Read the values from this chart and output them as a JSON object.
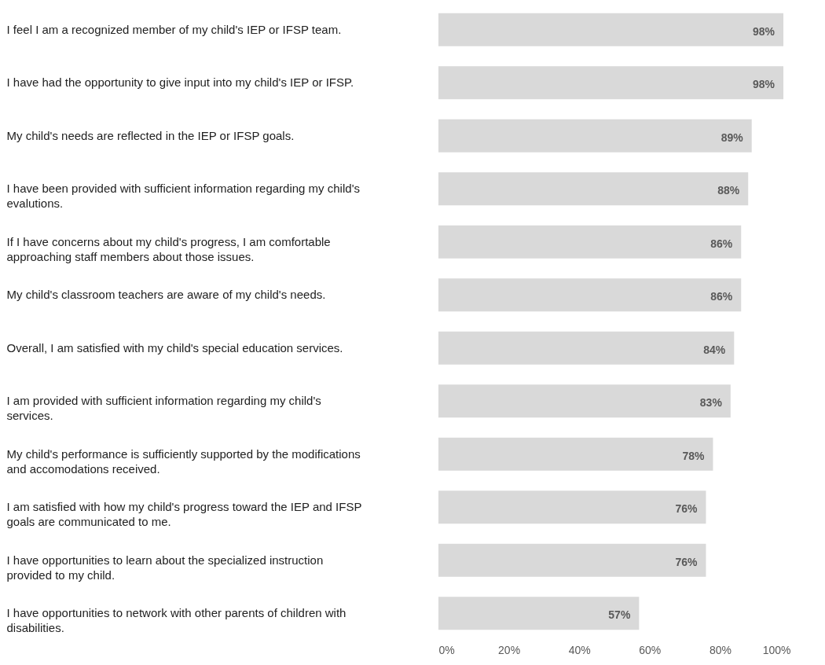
{
  "chart_data": {
    "type": "bar",
    "orientation": "horizontal",
    "categories": [
      "I feel I am a recognized member of my child's IEP or IFSP team.",
      "I have had the opportunity to give input into my child's IEP or IFSP.",
      "My child's needs are reflected in the IEP or IFSP goals.",
      "I have been provided with sufficient information regarding my child's evalutions.",
      "If I have concerns about my child's progress, I am comfortable approaching staff members about those issues.",
      "My child's classroom teachers are aware of my child's needs.",
      "Overall, I am satisfied with my child's special education services.",
      "I am provided with sufficient information regarding my child's services.",
      "My child's performance is sufficiently supported by the modifications and accomodations received.",
      "I am satisfied with how my child's progress toward the IEP and IFSP goals are communicated to me.",
      "I have opportunities to learn about the specialized instruction provided to my child.",
      "I have opportunities to network with other parents of children with disabilities."
    ],
    "values": [
      98,
      98,
      89,
      88,
      86,
      86,
      84,
      83,
      78,
      76,
      76,
      57
    ],
    "value_labels": [
      "98%",
      "98%",
      "89%",
      "88%",
      "86%",
      "86%",
      "84%",
      "83%",
      "78%",
      "76%",
      "76%",
      "57%"
    ],
    "color": "#d9d9d9",
    "xlim": [
      0,
      100
    ],
    "xticks": [
      {
        "value": 0,
        "label": "0%"
      },
      {
        "value": 20,
        "label": "20%"
      },
      {
        "value": 40,
        "label": "40%"
      },
      {
        "value": 60,
        "label": "60%"
      },
      {
        "value": 80,
        "label": "80%"
      },
      {
        "value": 100,
        "label": "100%"
      }
    ],
    "grid": false
  }
}
